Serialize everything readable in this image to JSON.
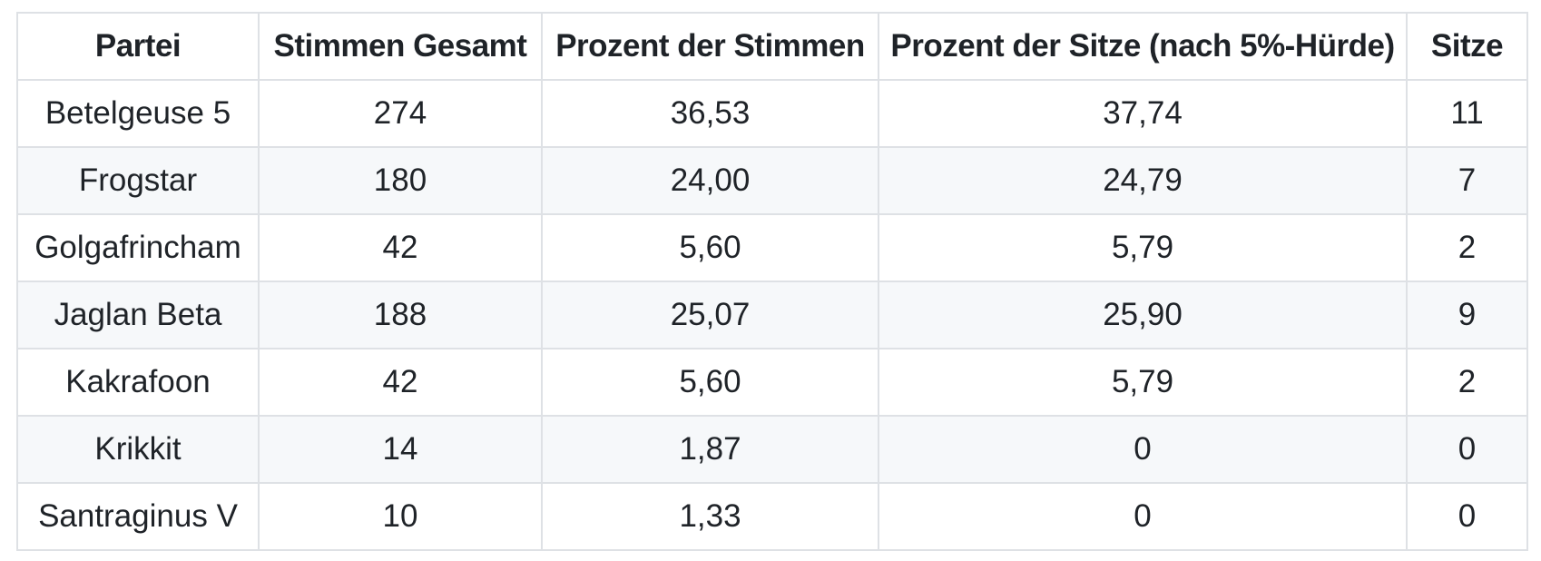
{
  "table": {
    "headers": [
      "Partei",
      "Stimmen Gesamt",
      "Prozent der Stimmen",
      "Prozent der Sitze (nach 5%-Hürde)",
      "Sitze"
    ],
    "rows": [
      [
        "Betelgeuse 5",
        "274",
        "36,53",
        "37,74",
        "11"
      ],
      [
        "Frogstar",
        "180",
        "24,00",
        "24,79",
        "7"
      ],
      [
        "Golgafrincham",
        "42",
        "5,60",
        "5,79",
        "2"
      ],
      [
        "Jaglan Beta",
        "188",
        "25,07",
        "25,90",
        "9"
      ],
      [
        "Kakrafoon",
        "42",
        "5,60",
        "5,79",
        "2"
      ],
      [
        "Krikkit",
        "14",
        "1,87",
        "0",
        "0"
      ],
      [
        "Santraginus V",
        "10",
        "1,33",
        "0",
        "0"
      ]
    ]
  },
  "chart_data": {
    "type": "table",
    "title": "",
    "columns": [
      "Partei",
      "Stimmen Gesamt",
      "Prozent der Stimmen",
      "Prozent der Sitze (nach 5%-Hürde)",
      "Sitze"
    ],
    "categories": [
      "Betelgeuse 5",
      "Frogstar",
      "Golgafrincham",
      "Jaglan Beta",
      "Kakrafoon",
      "Krikkit",
      "Santraginus V"
    ],
    "series": [
      {
        "name": "Stimmen Gesamt",
        "values": [
          274,
          180,
          42,
          188,
          42,
          14,
          10
        ]
      },
      {
        "name": "Prozent der Stimmen",
        "values": [
          36.53,
          24.0,
          5.6,
          25.07,
          5.6,
          1.87,
          1.33
        ]
      },
      {
        "name": "Prozent der Sitze (nach 5%-Hürde)",
        "values": [
          37.74,
          24.79,
          5.79,
          25.9,
          5.79,
          0,
          0
        ]
      },
      {
        "name": "Sitze",
        "values": [
          11,
          7,
          2,
          9,
          2,
          0,
          0
        ]
      }
    ],
    "layout_hints": {
      "zebra_striping": true,
      "all_cells_centered": true,
      "decimal_separator": ","
    }
  },
  "colors": {
    "background": "#ffffff",
    "border": "#dee1e5",
    "alt_row_background": "#f6f8fa",
    "text": "#1f2328"
  }
}
